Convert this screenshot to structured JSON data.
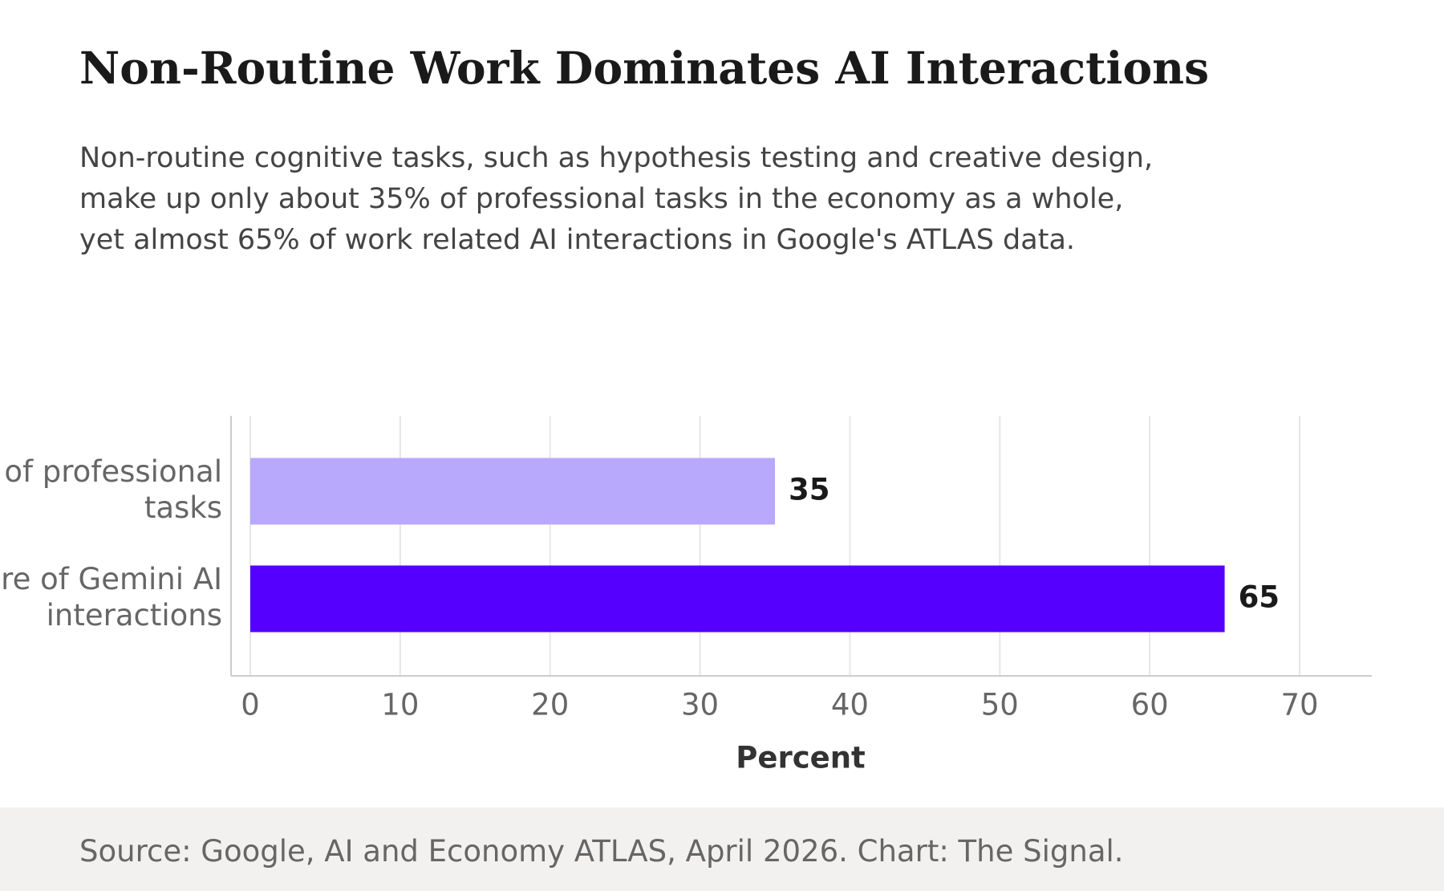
{
  "title": "Non-Routine Work Dominates AI Interactions",
  "subtitle": "Non-routine cognitive tasks, such as hypothesis testing and creative design, make up only about 35% of professional tasks in the economy as a whole, yet almost 65% of work related AI interactions in Google's ATLAS data.",
  "source": "Source: Google, AI and Economy ATLAS, April 2026. Chart: The Signal.",
  "chart_data": {
    "type": "bar",
    "orientation": "horizontal",
    "categories": [
      [
        "of professional",
        "tasks"
      ],
      [
        "re of Gemini AI",
        "interactions"
      ]
    ],
    "values": [
      35,
      65
    ],
    "data_labels": [
      "35",
      "65"
    ],
    "colors": [
      "#b8a9fc",
      "#5500ff"
    ],
    "xlabel": "Percent",
    "xlim": [
      0,
      70
    ],
    "xticks": [
      0,
      10,
      20,
      30,
      40,
      50,
      60,
      70
    ],
    "xtick_labels": [
      "0",
      "10",
      "20",
      "30",
      "40",
      "50",
      "60",
      "70"
    ],
    "grid": "vertical",
    "legend": "none"
  }
}
